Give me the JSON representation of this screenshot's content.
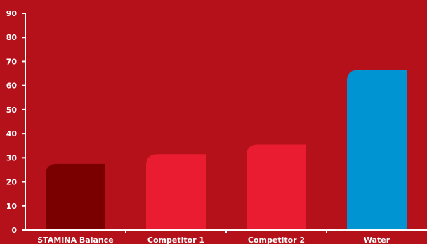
{
  "chart_data": {
    "type": "bar",
    "categories": [
      "STAMINA Balance",
      "Competitor 1",
      "Competitor 2",
      "Water"
    ],
    "values": [
      27.5,
      31.5,
      35.5,
      66.5
    ],
    "ylim": [
      0,
      90
    ],
    "yticks": [
      0,
      10,
      20,
      30,
      40,
      50,
      60,
      70,
      80,
      90
    ],
    "grid": false,
    "colors": {
      "background": "#b5111a",
      "bars": [
        "#7a0000",
        "#e91c31",
        "#e91c31",
        "#0094d3"
      ],
      "axis": "#ffffff",
      "text": "#ffffff"
    }
  }
}
